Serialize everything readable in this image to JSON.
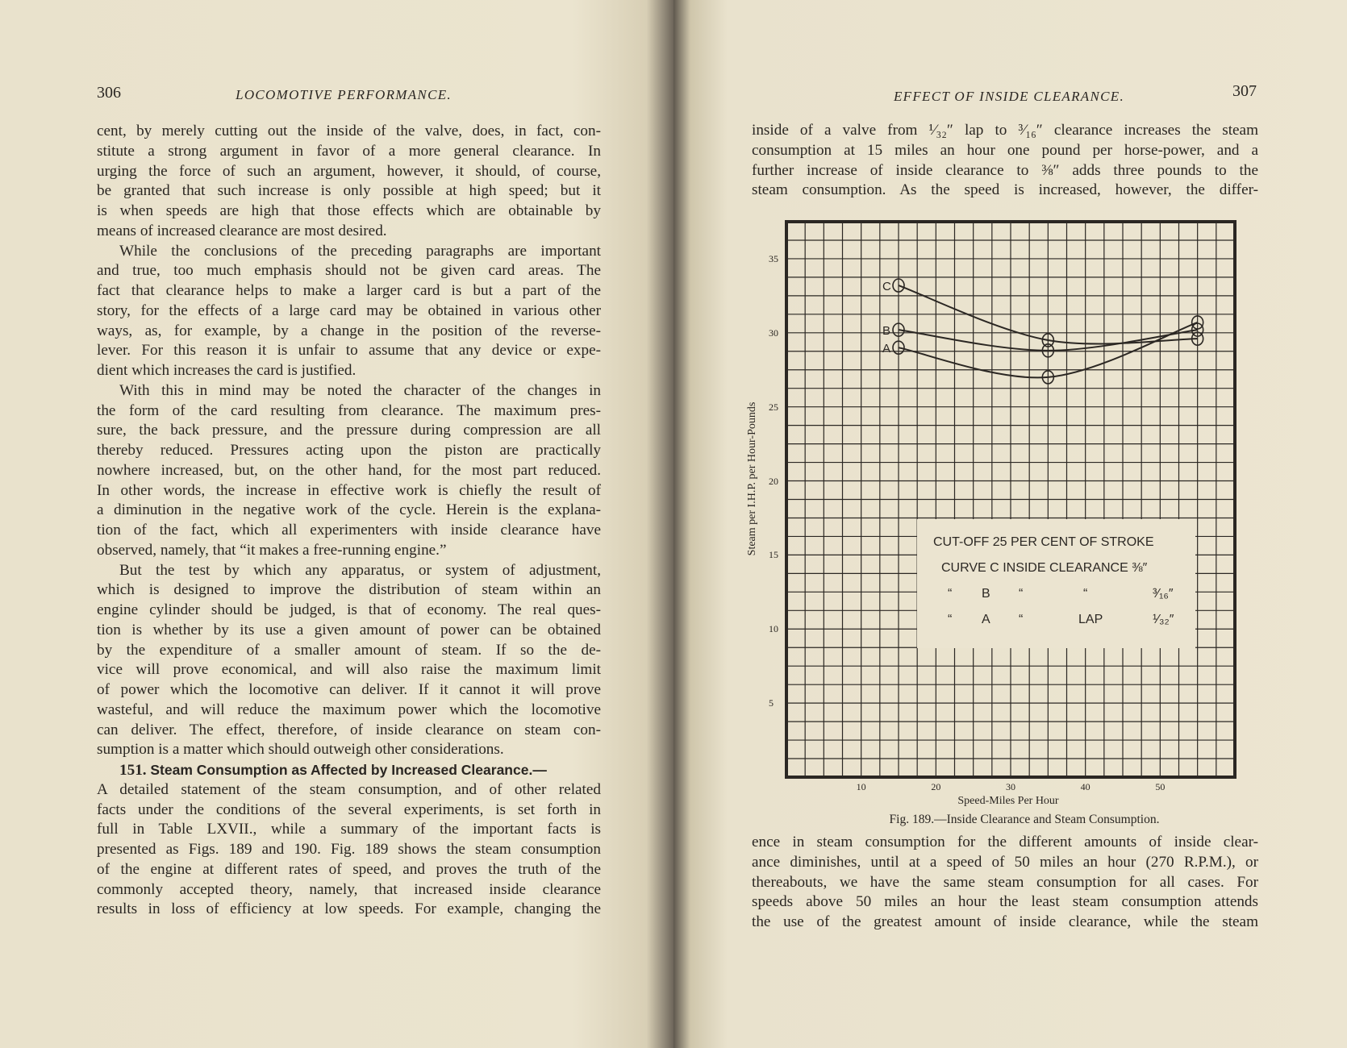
{
  "left_page": {
    "page_number": "306",
    "running_head": "LOCOMOTIVE PERFORMANCE.",
    "paragraphs": [
      {
        "indent": false,
        "lines": [
          "cent, by merely cutting out the inside of the valve, does, in fact, con-",
          "stitute a strong argument in favor of a more general clearance. In",
          "urging the force of such an argument, however, it should, of course,",
          "be granted that such increase is only possible at high speed; but it",
          "is when speeds are high that those effects which are obtainable by",
          "means of increased clearance are most desired."
        ]
      },
      {
        "indent": true,
        "lines": [
          "While the conclusions of the preceding paragraphs are important",
          "and true, too much emphasis should not be given card areas. The",
          "fact that clearance helps to make a larger card is but a part of the",
          "story, for the effects of a large card may be obtained in various other",
          "ways, as, for example, by a change in the position of the reverse-",
          "lever. For this reason it is unfair to assume that any device or expe-",
          "dient which increases the card is justified."
        ]
      },
      {
        "indent": true,
        "lines": [
          "With this in mind may be noted the character of the changes in",
          "the form of the card resulting from clearance. The maximum pres-",
          "sure, the back pressure, and the pressure during compression are all",
          "thereby reduced. Pressures acting upon the piston are practically",
          "nowhere increased, but, on the other hand, for the most part reduced.",
          "In other words, the increase in effective work is chiefly the result of",
          "a diminution in the negative work of the cycle. Herein is the explana-",
          "tion of the fact, which all experimenters with inside clearance have",
          "observed, namely, that “it makes a free-running engine.”"
        ]
      },
      {
        "indent": true,
        "lines": [
          "But the test by which any apparatus, or system of adjustment,",
          "which is designed to improve the distribution of steam within an",
          "engine cylinder should be judged, is that of economy. The real ques-",
          "tion is whether by its use a given amount of power can be obtained",
          "by the expenditure of a smaller amount of steam. If so the de-",
          "vice will prove economical, and will also raise the maximum limit",
          "of power which the locomotive can deliver. If it cannot it will prove",
          "wasteful, and will reduce the maximum power which the locomotive",
          "can deliver. The effect, therefore, of inside clearance on steam con-",
          "sumption is a matter which should outweigh other considerations."
        ]
      }
    ],
    "section": {
      "number": "151.",
      "title": "Steam Consumption as Affected by Increased Clearance.—",
      "lines": [
        "A detailed statement of the steam consumption, and of other related",
        "facts under the conditions of the several experiments, is set forth in",
        "full in Table LXVII., while a summary of the important facts is",
        "presented as Figs. 189 and 190. Fig. 189 shows the steam consumption",
        "of the engine at different rates of speed, and proves the truth of the",
        "commonly accepted theory, namely, that increased inside clearance",
        "results in loss of efficiency at low speeds. For example, changing the"
      ]
    }
  },
  "right_page": {
    "page_number": "307",
    "running_head": "EFFECT OF INSIDE CLEARANCE.",
    "top_lines": [
      "inside of a valve from ¹⁄₃₂″ lap to ³⁄₁₆″ clearance increases the steam",
      "consumption at 15 miles an hour one pound per horse-power, and a",
      "further increase of inside clearance to ⅜″ adds three pounds to the",
      "steam consumption. As the speed is increased, however, the differ-"
    ],
    "bottom_lines": [
      "ence in steam consumption for the different amounts of inside clear-",
      "ance diminishes, until at a speed of 50 miles an hour (270 R.P.M.), or",
      "thereabouts, we have the same steam consumption for all cases. For",
      "speeds above 50 miles an hour the least steam consumption attends",
      "the use of the greatest amount of inside clearance, while the steam"
    ],
    "caption": "Fig. 189.—Inside Clearance and Steam Consumption."
  },
  "chart_data": {
    "type": "line",
    "title": "",
    "xlabel": "Speed-Miles Per Hour",
    "ylabel": "Steam per I.H.P. per Hour-Pounds",
    "xlim": [
      0,
      60
    ],
    "ylim": [
      0,
      37.5
    ],
    "x_ticks": [
      "10",
      "20",
      "30",
      "40",
      "50"
    ],
    "x_tick_values": [
      10,
      20,
      30,
      40,
      50
    ],
    "y_ticks": [
      "5",
      "10",
      "15",
      "20",
      "25",
      "30",
      "35"
    ],
    "y_tick_values": [
      5,
      10,
      15,
      20,
      25,
      30,
      35
    ],
    "grid": true,
    "x_grid_step": 2.5,
    "y_grid_step": 1.25,
    "series": [
      {
        "name": "C",
        "x": [
          15,
          35,
          55
        ],
        "y": [
          33.2,
          29.5,
          29.6
        ]
      },
      {
        "name": "B",
        "x": [
          15,
          35,
          55
        ],
        "y": [
          30.2,
          28.8,
          30.2
        ]
      },
      {
        "name": "A",
        "x": [
          15,
          35,
          55
        ],
        "y": [
          29.0,
          27.0,
          30.7
        ]
      }
    ],
    "legend": {
      "placement": "center-right",
      "heading": "CUT-OFF 25 PER CENT OF STROKE",
      "rows": [
        {
          "prefix": "CURVE",
          "curve": "C",
          "label": "INSIDE CLEARANCE",
          "value": "⅜″"
        },
        {
          "prefix": "“",
          "curve": "B",
          "ditto1": "“",
          "label": "“",
          "value": "³⁄₁₆″"
        },
        {
          "prefix": "“",
          "curve": "A",
          "ditto1": "“",
          "label": "LAP",
          "value": "¹⁄₃₂″"
        }
      ]
    },
    "colors": {
      "ink": "#2b2723",
      "paper": "#ece5d1"
    }
  }
}
